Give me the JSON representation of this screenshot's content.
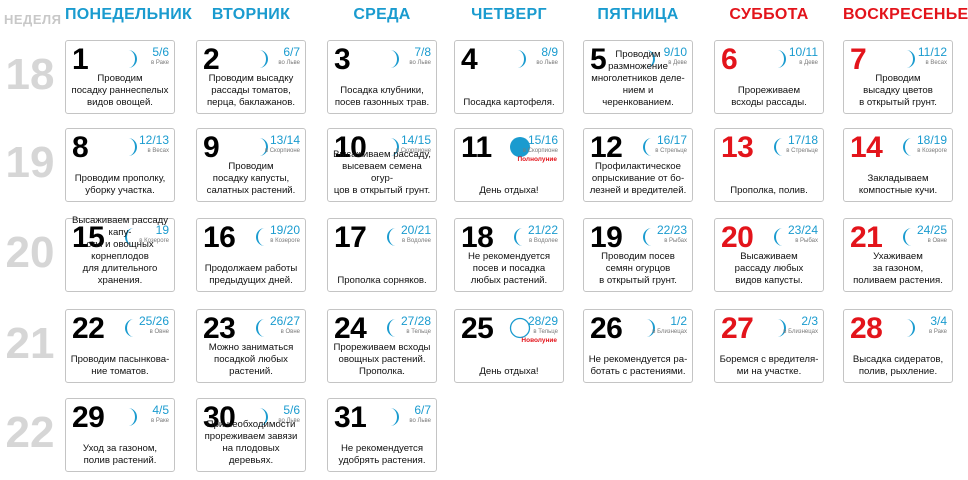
{
  "header": {
    "week_label": "НЕДЕЛЯ",
    "days": [
      "ПОНЕДЕЛЬНИК",
      "ВТОРНИК",
      "СРЕДА",
      "ЧЕТВЕРГ",
      "ПЯТНИЦА",
      "СУББОТА",
      "ВОСКРЕСЕНЬЕ"
    ]
  },
  "weeks": [
    "18",
    "19",
    "20",
    "21",
    "22"
  ],
  "colors": {
    "accent": "#1a9bcf",
    "weekend": "#e3141b",
    "weeknum": "#d6d6d6"
  },
  "cells": [
    {
      "num": "1",
      "moon_days": "5/6",
      "sign": "в Раке",
      "task": "Проводим\nпосадку раннеспелых\nвидов овощей.",
      "moon": "crescent"
    },
    {
      "num": "2",
      "moon_days": "6/7",
      "sign": "во Льве",
      "task": "Проводим высадку\nрассады томатов,\nперца, баклажанов.",
      "moon": "crescent"
    },
    {
      "num": "3",
      "moon_days": "7/8",
      "sign": "во Льве",
      "task": "Посадка клубники,\nпосев газонных трав.",
      "moon": "crescent"
    },
    {
      "num": "4",
      "moon_days": "8/9",
      "sign": "во Льве",
      "task": "Посадка картофеля.",
      "moon": "crescent"
    },
    {
      "num": "5",
      "moon_days": "9/10",
      "sign": "в Деве",
      "task": "Проводим размножение\nмноголетников деле-\nнием и черенкованием.",
      "moon": "crescent"
    },
    {
      "num": "6",
      "moon_days": "10/11",
      "sign": "в Деве",
      "task": "Прореживаем\nвсходы рассады.",
      "moon": "crescent"
    },
    {
      "num": "7",
      "moon_days": "11/12",
      "sign": "в Весах",
      "task": "Проводим\nвысадку цветов\nв открытый грунт.",
      "moon": "crescent"
    },
    {
      "num": "8",
      "moon_days": "12/13",
      "sign": "в Весах",
      "task": "Проводим прополку,\nуборку участка.",
      "moon": "crescent"
    },
    {
      "num": "9",
      "moon_days": "13/14",
      "sign": "в Скорпионе",
      "task": "Проводим\nпосадку капусты,\nсалатных растений.",
      "moon": "crescent"
    },
    {
      "num": "10",
      "moon_days": "14/15",
      "sign": "в Скорпионе",
      "task": "Высаживаем рассаду,\nвысеваем семена огур-\nцов в открытый грунт.",
      "moon": "crescent"
    },
    {
      "num": "11",
      "moon_days": "15/16",
      "sign": "в Скорпионе",
      "phase": "Полнолуние",
      "task": "День отдыха!",
      "moon": "full"
    },
    {
      "num": "12",
      "moon_days": "16/17",
      "sign": "в Стрельце",
      "task": "Профилактическое\nопрыскивание от бо-\nлезней и вредителей.",
      "moon": "waning"
    },
    {
      "num": "13",
      "moon_days": "17/18",
      "sign": "в Стрельце",
      "task": "Прополка, полив.",
      "moon": "waning"
    },
    {
      "num": "14",
      "moon_days": "18/19",
      "sign": "в Козероге",
      "task": "Закладываем\nкомпостные кучи.",
      "moon": "waning"
    },
    {
      "num": "15",
      "moon_days": "19",
      "sign": "в Козероге",
      "task": "Высаживаем рассаду капу-\nсты и овощных корнеплодов\nдля длительного хранения.",
      "moon": "waning"
    },
    {
      "num": "16",
      "moon_days": "19/20",
      "sign": "в Козероге",
      "task": "Продолжаем работы\nпредыдущих дней.",
      "moon": "waning"
    },
    {
      "num": "17",
      "moon_days": "20/21",
      "sign": "в Водолее",
      "task": "Прополка сорняков.",
      "moon": "waning"
    },
    {
      "num": "18",
      "moon_days": "21/22",
      "sign": "в Водолее",
      "task": "Не рекомендуется\nпосев и посадка\nлюбых растений.",
      "moon": "waning"
    },
    {
      "num": "19",
      "moon_days": "22/23",
      "sign": "в Рыбах",
      "task": "Проводим посев\nсемян огурцов\nв открытый грунт.",
      "moon": "waning"
    },
    {
      "num": "20",
      "moon_days": "23/24",
      "sign": "в Рыбах",
      "task": "Высаживаем\nрассаду любых\nвидов капусты.",
      "moon": "waning"
    },
    {
      "num": "21",
      "moon_days": "24/25",
      "sign": "в Овне",
      "task": "Ухаживаем\nза газоном,\nполиваем растения.",
      "moon": "waning"
    },
    {
      "num": "22",
      "moon_days": "25/26",
      "sign": "в Овне",
      "task": "Проводим пасынкова-\nние томатов.",
      "moon": "waning"
    },
    {
      "num": "23",
      "moon_days": "26/27",
      "sign": "в Овне",
      "task": "Можно заниматься\nпосадкой любых\nрастений.",
      "moon": "waning"
    },
    {
      "num": "24",
      "moon_days": "27/28",
      "sign": "в Тельце",
      "task": "Прореживаем всходы\nовощных растений.\nПрополка.",
      "moon": "waning"
    },
    {
      "num": "25",
      "moon_days": "28/29",
      "sign": "в Тельце",
      "phase": "Новолуние",
      "task": "День отдыха!",
      "moon": "new"
    },
    {
      "num": "26",
      "moon_days": "1/2",
      "sign": "в Близнецах",
      "task": "Не рекомендуется ра-\nботать с растениями.",
      "moon": "crescent"
    },
    {
      "num": "27",
      "moon_days": "2/3",
      "sign": "в Близнецах",
      "task": "Боремся с вредителя-\nми на участке.",
      "moon": "crescent"
    },
    {
      "num": "28",
      "moon_days": "3/4",
      "sign": "в Раке",
      "task": "Высадка сидератов,\nполив, рыхление.",
      "moon": "crescent"
    },
    {
      "num": "29",
      "moon_days": "4/5",
      "sign": "в Раке",
      "task": "Уход за газоном,\nполив растений.",
      "moon": "crescent"
    },
    {
      "num": "30",
      "moon_days": "5/6",
      "sign": "во Льве",
      "task": "При необходимости\nпрореживаем завязи\nна плодовых деревьях.",
      "moon": "crescent"
    },
    {
      "num": "31",
      "moon_days": "6/7",
      "sign": "во Льве",
      "task": "Не рекомендуется\nудобрять растения.",
      "moon": "crescent"
    }
  ]
}
